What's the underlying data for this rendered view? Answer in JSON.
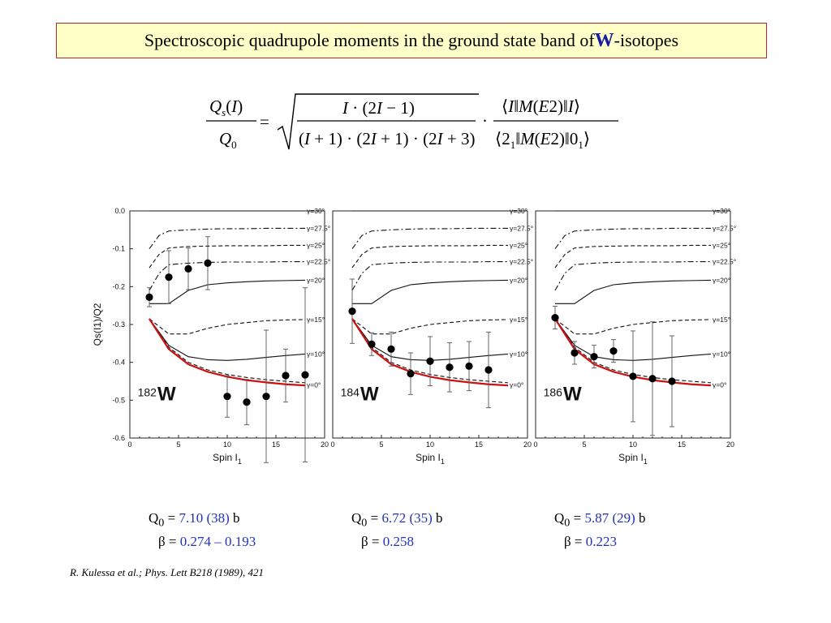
{
  "title": {
    "prefix": "Spectroscopic quadrupole moments in the ground state band of ",
    "element": "W",
    "suffix": "-isotopes"
  },
  "formula": {
    "lhs_num": "Qs(I)",
    "lhs_den": "Q0",
    "eq": "=",
    "sqrt_num": "I · (2I − 1)",
    "sqrt_den": "(I + 1) · (2I + 1) · (2I + 3)",
    "dot": "·",
    "me_num": "⟨I‖M(E2)‖I⟩",
    "me_den": "⟨2₁‖M(E2)‖0₁⟩"
  },
  "colors": {
    "accent_blue": "#2233bb",
    "title_bg": "#ffffc8",
    "title_border": "#b8262a",
    "curve_red": "#cc1111"
  },
  "chart_data": [
    {
      "type": "line",
      "isotope_mass": "182",
      "isotope_symbol": "W",
      "xlabel": "Spin I1",
      "ylabel": "Qs(I1)/Q2",
      "xlim": [
        0,
        20
      ],
      "ylim": [
        -0.6,
        0.0
      ],
      "xticks": [
        0,
        5,
        10,
        15,
        20
      ],
      "yticks": [
        0.0,
        -0.1,
        -0.2,
        -0.3,
        -0.4,
        -0.5,
        -0.6
      ],
      "series": [
        {
          "name": "γ=30°",
          "style": "solid",
          "color": "#111111",
          "x": [
            2,
            4,
            6,
            8,
            10,
            12,
            14,
            16,
            18
          ],
          "y": [
            0.0,
            0.0,
            0.0,
            0.0,
            0.0,
            0.0,
            0.0,
            0.0,
            0.0
          ]
        },
        {
          "name": "γ=27.5°",
          "style": "dashdot",
          "color": "#111111",
          "x": [
            2,
            3,
            4,
            6,
            8,
            10,
            12,
            14,
            16,
            18
          ],
          "y": [
            -0.1,
            -0.065,
            -0.053,
            -0.05,
            -0.048,
            -0.047,
            -0.047,
            -0.046,
            -0.046,
            -0.046
          ]
        },
        {
          "name": "γ=25°",
          "style": "dashed",
          "color": "#111111",
          "x": [
            2,
            3,
            4,
            6,
            8,
            10,
            12,
            14,
            16,
            18
          ],
          "y": [
            -0.15,
            -0.115,
            -0.098,
            -0.094,
            -0.093,
            -0.092,
            -0.092,
            -0.092,
            -0.091,
            -0.091
          ]
        },
        {
          "name": "γ=22.5°",
          "style": "dashdot",
          "color": "#111111",
          "x": [
            2,
            3,
            4,
            6,
            8,
            10,
            12,
            14,
            16,
            18
          ],
          "y": [
            -0.21,
            -0.165,
            -0.142,
            -0.138,
            -0.136,
            -0.135,
            -0.135,
            -0.135,
            -0.134,
            -0.134
          ]
        },
        {
          "name": "γ=20°",
          "style": "solid",
          "color": "#111111",
          "x": [
            2,
            4,
            6,
            8,
            10,
            12,
            14,
            16,
            18
          ],
          "y": [
            -0.245,
            -0.245,
            -0.21,
            -0.195,
            -0.19,
            -0.187,
            -0.185,
            -0.184,
            -0.183
          ]
        },
        {
          "name": "γ=15°",
          "style": "dashed",
          "color": "#111111",
          "x": [
            2,
            4,
            6,
            8,
            10,
            12,
            14,
            16,
            18
          ],
          "y": [
            -0.285,
            -0.325,
            -0.325,
            -0.31,
            -0.3,
            -0.295,
            -0.29,
            -0.288,
            -0.287
          ]
        },
        {
          "name": "γ=10°",
          "style": "solid",
          "color": "#111111",
          "x": [
            2,
            4,
            6,
            8,
            10,
            12,
            14,
            16,
            18
          ],
          "y": [
            -0.285,
            -0.355,
            -0.385,
            -0.393,
            -0.395,
            -0.392,
            -0.387,
            -0.382,
            -0.378
          ]
        },
        {
          "name": "γ=0° (dashed)",
          "style": "dashed",
          "color": "#111111",
          "x": [
            2,
            4,
            6,
            8,
            10,
            12,
            14,
            16,
            18
          ],
          "y": [
            -0.285,
            -0.36,
            -0.4,
            -0.42,
            -0.432,
            -0.44,
            -0.446,
            -0.45,
            -0.454
          ]
        },
        {
          "name": "γ=0°",
          "style": "solid",
          "color": "#cc1111",
          "x": [
            2,
            4,
            6,
            8,
            10,
            12,
            14,
            16,
            18
          ],
          "y": [
            -0.285,
            -0.365,
            -0.405,
            -0.425,
            -0.438,
            -0.447,
            -0.453,
            -0.458,
            -0.461
          ]
        }
      ],
      "points": [
        {
          "x": 2,
          "y": -0.228,
          "err": 0.025
        },
        {
          "x": 4,
          "y": -0.175,
          "err": 0.07
        },
        {
          "x": 6,
          "y": -0.153,
          "err": 0.055
        },
        {
          "x": 8,
          "y": -0.138,
          "err": 0.07
        },
        {
          "x": 10,
          "y": -0.49,
          "err": 0.055
        },
        {
          "x": 12,
          "y": -0.505,
          "err": 0.06
        },
        {
          "x": 14,
          "y": -0.49,
          "err": 0.175
        },
        {
          "x": 16,
          "y": -0.435,
          "err": 0.07
        },
        {
          "x": 18,
          "y": -0.433,
          "err": 0.23
        }
      ]
    },
    {
      "type": "line",
      "isotope_mass": "184",
      "isotope_symbol": "W",
      "xlabel": "Spin I1",
      "ylabel": "",
      "xlim": [
        0,
        20
      ],
      "ylim": [
        -0.6,
        0.0
      ],
      "xticks": [
        0,
        5,
        10,
        15,
        20
      ],
      "yticks": [],
      "series": [
        {
          "name": "γ=30°",
          "style": "solid",
          "color": "#111111",
          "x": [
            2,
            4,
            6,
            8,
            10,
            12,
            14,
            16,
            18
          ],
          "y": [
            0.0,
            0.0,
            0.0,
            0.0,
            0.0,
            0.0,
            0.0,
            0.0,
            0.0
          ]
        },
        {
          "name": "γ=27.5°",
          "style": "dashdot",
          "color": "#111111",
          "x": [
            2,
            3,
            4,
            6,
            8,
            10,
            12,
            14,
            16,
            18
          ],
          "y": [
            -0.1,
            -0.065,
            -0.053,
            -0.05,
            -0.048,
            -0.047,
            -0.047,
            -0.046,
            -0.046,
            -0.046
          ]
        },
        {
          "name": "γ=25°",
          "style": "dashed",
          "color": "#111111",
          "x": [
            2,
            3,
            4,
            6,
            8,
            10,
            12,
            14,
            16,
            18
          ],
          "y": [
            -0.15,
            -0.115,
            -0.098,
            -0.094,
            -0.093,
            -0.092,
            -0.092,
            -0.092,
            -0.091,
            -0.091
          ]
        },
        {
          "name": "γ=22.5°",
          "style": "dashdot",
          "color": "#111111",
          "x": [
            2,
            3,
            4,
            6,
            8,
            10,
            12,
            14,
            16,
            18
          ],
          "y": [
            -0.21,
            -0.165,
            -0.142,
            -0.138,
            -0.136,
            -0.135,
            -0.135,
            -0.135,
            -0.134,
            -0.134
          ]
        },
        {
          "name": "γ=20°",
          "style": "solid",
          "color": "#111111",
          "x": [
            2,
            4,
            6,
            8,
            10,
            12,
            14,
            16,
            18
          ],
          "y": [
            -0.245,
            -0.245,
            -0.21,
            -0.195,
            -0.19,
            -0.187,
            -0.185,
            -0.184,
            -0.183
          ]
        },
        {
          "name": "γ=15°",
          "style": "dashed",
          "color": "#111111",
          "x": [
            2,
            4,
            6,
            8,
            10,
            12,
            14,
            16,
            18
          ],
          "y": [
            -0.285,
            -0.325,
            -0.325,
            -0.31,
            -0.3,
            -0.295,
            -0.29,
            -0.288,
            -0.287
          ]
        },
        {
          "name": "γ=10°",
          "style": "solid",
          "color": "#111111",
          "x": [
            2,
            4,
            6,
            8,
            10,
            12,
            14,
            16,
            18
          ],
          "y": [
            -0.285,
            -0.355,
            -0.385,
            -0.393,
            -0.395,
            -0.392,
            -0.387,
            -0.382,
            -0.378
          ]
        },
        {
          "name": "γ=0° (dashed)",
          "style": "dashed",
          "color": "#111111",
          "x": [
            2,
            4,
            6,
            8,
            10,
            12,
            14,
            16,
            18
          ],
          "y": [
            -0.285,
            -0.36,
            -0.4,
            -0.42,
            -0.432,
            -0.44,
            -0.446,
            -0.45,
            -0.454
          ]
        },
        {
          "name": "γ=0°",
          "style": "solid",
          "color": "#cc1111",
          "x": [
            2,
            4,
            6,
            8,
            10,
            12,
            14,
            16,
            18
          ],
          "y": [
            -0.285,
            -0.365,
            -0.405,
            -0.425,
            -0.438,
            -0.447,
            -0.453,
            -0.458,
            -0.461
          ]
        }
      ],
      "points": [
        {
          "x": 2,
          "y": -0.265,
          "err": 0.085
        },
        {
          "x": 4,
          "y": -0.352,
          "err": 0.03
        },
        {
          "x": 6,
          "y": -0.365,
          "err": 0.045
        },
        {
          "x": 8,
          "y": -0.43,
          "err": 0.055
        },
        {
          "x": 10,
          "y": -0.397,
          "err": 0.065
        },
        {
          "x": 12,
          "y": -0.413,
          "err": 0.065
        },
        {
          "x": 14,
          "y": -0.41,
          "err": 0.065
        },
        {
          "x": 16,
          "y": -0.42,
          "err": 0.1
        }
      ]
    },
    {
      "type": "line",
      "isotope_mass": "186",
      "isotope_symbol": "W",
      "xlabel": "Spin I1",
      "ylabel": "",
      "xlim": [
        0,
        20
      ],
      "ylim": [
        -0.6,
        0.0
      ],
      "xticks": [
        0,
        5,
        10,
        15,
        20
      ],
      "yticks": [],
      "series": [
        {
          "name": "γ=30°",
          "style": "solid",
          "color": "#111111",
          "x": [
            2,
            4,
            6,
            8,
            10,
            12,
            14,
            16,
            18
          ],
          "y": [
            0.0,
            0.0,
            0.0,
            0.0,
            0.0,
            0.0,
            0.0,
            0.0,
            0.0
          ]
        },
        {
          "name": "γ=27.5°",
          "style": "dashdot",
          "color": "#111111",
          "x": [
            2,
            3,
            4,
            6,
            8,
            10,
            12,
            14,
            16,
            18
          ],
          "y": [
            -0.1,
            -0.065,
            -0.053,
            -0.05,
            -0.048,
            -0.047,
            -0.047,
            -0.046,
            -0.046,
            -0.046
          ]
        },
        {
          "name": "γ=25°",
          "style": "dashed",
          "color": "#111111",
          "x": [
            2,
            3,
            4,
            6,
            8,
            10,
            12,
            14,
            16,
            18
          ],
          "y": [
            -0.15,
            -0.115,
            -0.098,
            -0.094,
            -0.093,
            -0.092,
            -0.092,
            -0.092,
            -0.091,
            -0.091
          ]
        },
        {
          "name": "γ=22.5°",
          "style": "dashdot",
          "color": "#111111",
          "x": [
            2,
            3,
            4,
            6,
            8,
            10,
            12,
            14,
            16,
            18
          ],
          "y": [
            -0.21,
            -0.165,
            -0.142,
            -0.138,
            -0.136,
            -0.135,
            -0.135,
            -0.135,
            -0.134,
            -0.134
          ]
        },
        {
          "name": "γ=20°",
          "style": "solid",
          "color": "#111111",
          "x": [
            2,
            4,
            6,
            8,
            10,
            12,
            14,
            16,
            18
          ],
          "y": [
            -0.245,
            -0.245,
            -0.21,
            -0.195,
            -0.19,
            -0.187,
            -0.185,
            -0.184,
            -0.183
          ]
        },
        {
          "name": "γ=15°",
          "style": "dashed",
          "color": "#111111",
          "x": [
            2,
            4,
            6,
            8,
            10,
            12,
            14,
            16,
            18
          ],
          "y": [
            -0.285,
            -0.325,
            -0.325,
            -0.31,
            -0.3,
            -0.295,
            -0.29,
            -0.288,
            -0.287
          ]
        },
        {
          "name": "γ=10°",
          "style": "solid",
          "color": "#111111",
          "x": [
            2,
            4,
            6,
            8,
            10,
            12,
            14,
            16,
            18
          ],
          "y": [
            -0.285,
            -0.355,
            -0.385,
            -0.393,
            -0.395,
            -0.392,
            -0.387,
            -0.382,
            -0.378
          ]
        },
        {
          "name": "γ=0° (dashed)",
          "style": "dashed",
          "color": "#111111",
          "x": [
            2,
            4,
            6,
            8,
            10,
            12,
            14,
            16,
            18
          ],
          "y": [
            -0.285,
            -0.36,
            -0.4,
            -0.42,
            -0.432,
            -0.44,
            -0.446,
            -0.45,
            -0.454
          ]
        },
        {
          "name": "γ=0°",
          "style": "solid",
          "color": "#cc1111",
          "x": [
            2,
            4,
            6,
            8,
            10,
            12,
            14,
            16,
            18
          ],
          "y": [
            -0.285,
            -0.365,
            -0.405,
            -0.425,
            -0.438,
            -0.447,
            -0.453,
            -0.458,
            -0.461
          ]
        }
      ],
      "points": [
        {
          "x": 2,
          "y": -0.282,
          "err": 0.03
        },
        {
          "x": 4,
          "y": -0.375,
          "err": 0.03
        },
        {
          "x": 6,
          "y": -0.385,
          "err": 0.03
        },
        {
          "x": 8,
          "y": -0.37,
          "err": 0.03
        },
        {
          "x": 10,
          "y": -0.437,
          "err": 0.12
        },
        {
          "x": 12,
          "y": -0.443,
          "err": 0.15
        },
        {
          "x": 14,
          "y": -0.45,
          "err": 0.12
        }
      ]
    }
  ],
  "params": [
    {
      "q_label": "Q",
      "q_sub": "0",
      "q_eq": " = ",
      "q_value": "7.10 (38)",
      "q_unit": " b",
      "beta_label": "β = ",
      "beta_value": "0.274 – 0.193"
    },
    {
      "q_label": "Q",
      "q_sub": "0",
      "q_eq": " = ",
      "q_value": "6.72 (35)",
      "q_unit": " b",
      "beta_label": "β = ",
      "beta_value": "0.258"
    },
    {
      "q_label": "Q",
      "q_sub": "0",
      "q_eq": " = ",
      "q_value": "5.87 (29)",
      "q_unit": " b",
      "beta_label": "β = ",
      "beta_value": "0.223"
    }
  ],
  "reference": "R. Kulessa et al.; Phys. Lett B218 (1989), 421"
}
